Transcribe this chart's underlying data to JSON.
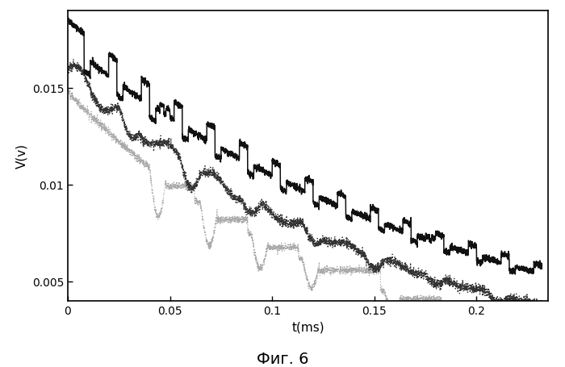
{
  "title": "Фиг. 6",
  "xlabel": "t(ms)",
  "ylabel": "V(v)",
  "xlim": [
    0,
    0.235
  ],
  "ylim": [
    0.004,
    0.019
  ],
  "yticks": [
    0.005,
    0.01,
    0.015
  ],
  "xticks": [
    0,
    0.05,
    0.1,
    0.15,
    0.2
  ],
  "background_color": "#ffffff",
  "line1_color": "#111111",
  "line2_color": "#333333",
  "line3_color": "#aaaaaa",
  "seed": 42
}
